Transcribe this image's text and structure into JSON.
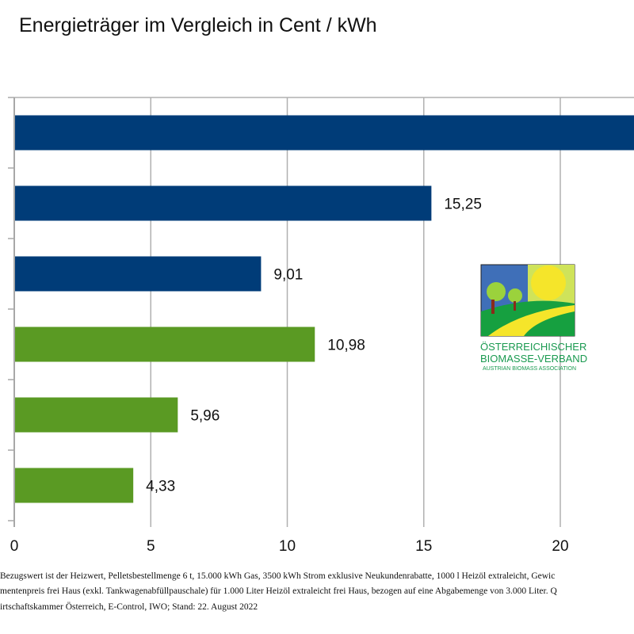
{
  "chart_data": {
    "type": "bar",
    "orientation": "horizontal",
    "title": "Energieträger im Vergleich in Cent / kWh",
    "values": [
      24,
      15.25,
      9.01,
      10.98,
      5.96,
      4.33
    ],
    "labels": [
      "",
      "15,25",
      "9,01",
      "10,98",
      "5,96",
      "4,33"
    ],
    "colors": [
      "#003c78",
      "#003c78",
      "#003c78",
      "#5a9a23",
      "#5a9a23",
      "#5a9a23"
    ],
    "xticks": [
      "0",
      "5",
      "10",
      "15",
      "20"
    ],
    "xtick_values": [
      0,
      5,
      10,
      15,
      20
    ],
    "grid": true,
    "note": "first bar extends beyond the visible area; its label is not visible"
  },
  "footnote": [
    "Bezugswert ist der Heizwert, Pelletsbestellmenge 6 t, 15.000 kWh Gas, 3500 kWh Strom exklusive Neukundenrabatte, 1000 l Heizöl extraleicht, Gewic",
    "mentenpreis frei Haus (exkl. Tankwagenabfüllpauschale) für 1.000 Liter Heizöl extraleicht frei Haus, bezogen auf eine Abgabemenge von 3.000 Liter. Q",
    "irtschaftskammer Österreich, E-Control, IWO; Stand: 22. August 2022"
  ],
  "logo": {
    "line1": "Österreichischer",
    "line2": "Biomasse-Verband",
    "line3": "Austrian Biomass Association"
  }
}
